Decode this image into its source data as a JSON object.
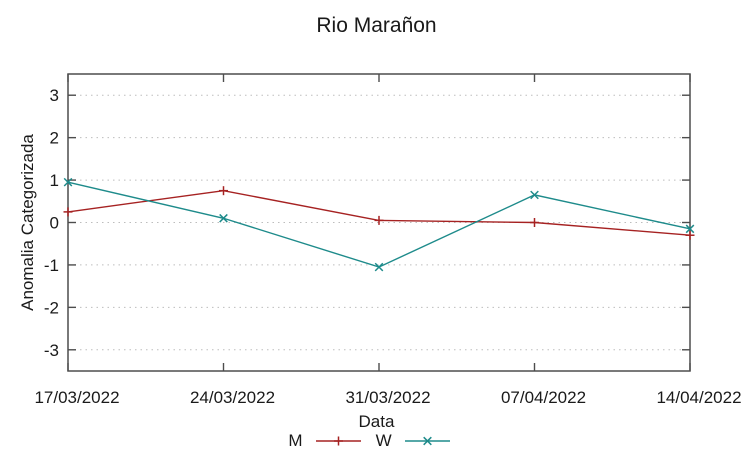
{
  "title": "Rio Marañon",
  "chart_data": {
    "type": "line",
    "title": "Rio Marañon",
    "xlabel": "Data",
    "ylabel": "Anomalia Categorizada",
    "categories": [
      "17/03/2022",
      "24/03/2022",
      "31/03/2022",
      "07/04/2022",
      "14/04/2022"
    ],
    "series": [
      {
        "name": "M",
        "values": [
          0.25,
          0.75,
          0.05,
          0.0,
          -0.3
        ],
        "color": "#a62222",
        "marker": "plus"
      },
      {
        "name": "W",
        "values": [
          0.95,
          0.1,
          -1.05,
          0.65,
          -0.15
        ],
        "color": "#1e8b8b",
        "marker": "cross"
      }
    ],
    "ylim": [
      -3.5,
      3.5
    ],
    "yticks": [
      -3,
      -2,
      -1,
      0,
      1,
      2,
      3
    ],
    "grid": "horizontal-dotted",
    "legend_position": "bottom-center"
  },
  "colors": {
    "axis": "#4d4d4d",
    "grid": "#bdbdbd",
    "text": "#1a1a1a",
    "background": "#ffffff"
  }
}
